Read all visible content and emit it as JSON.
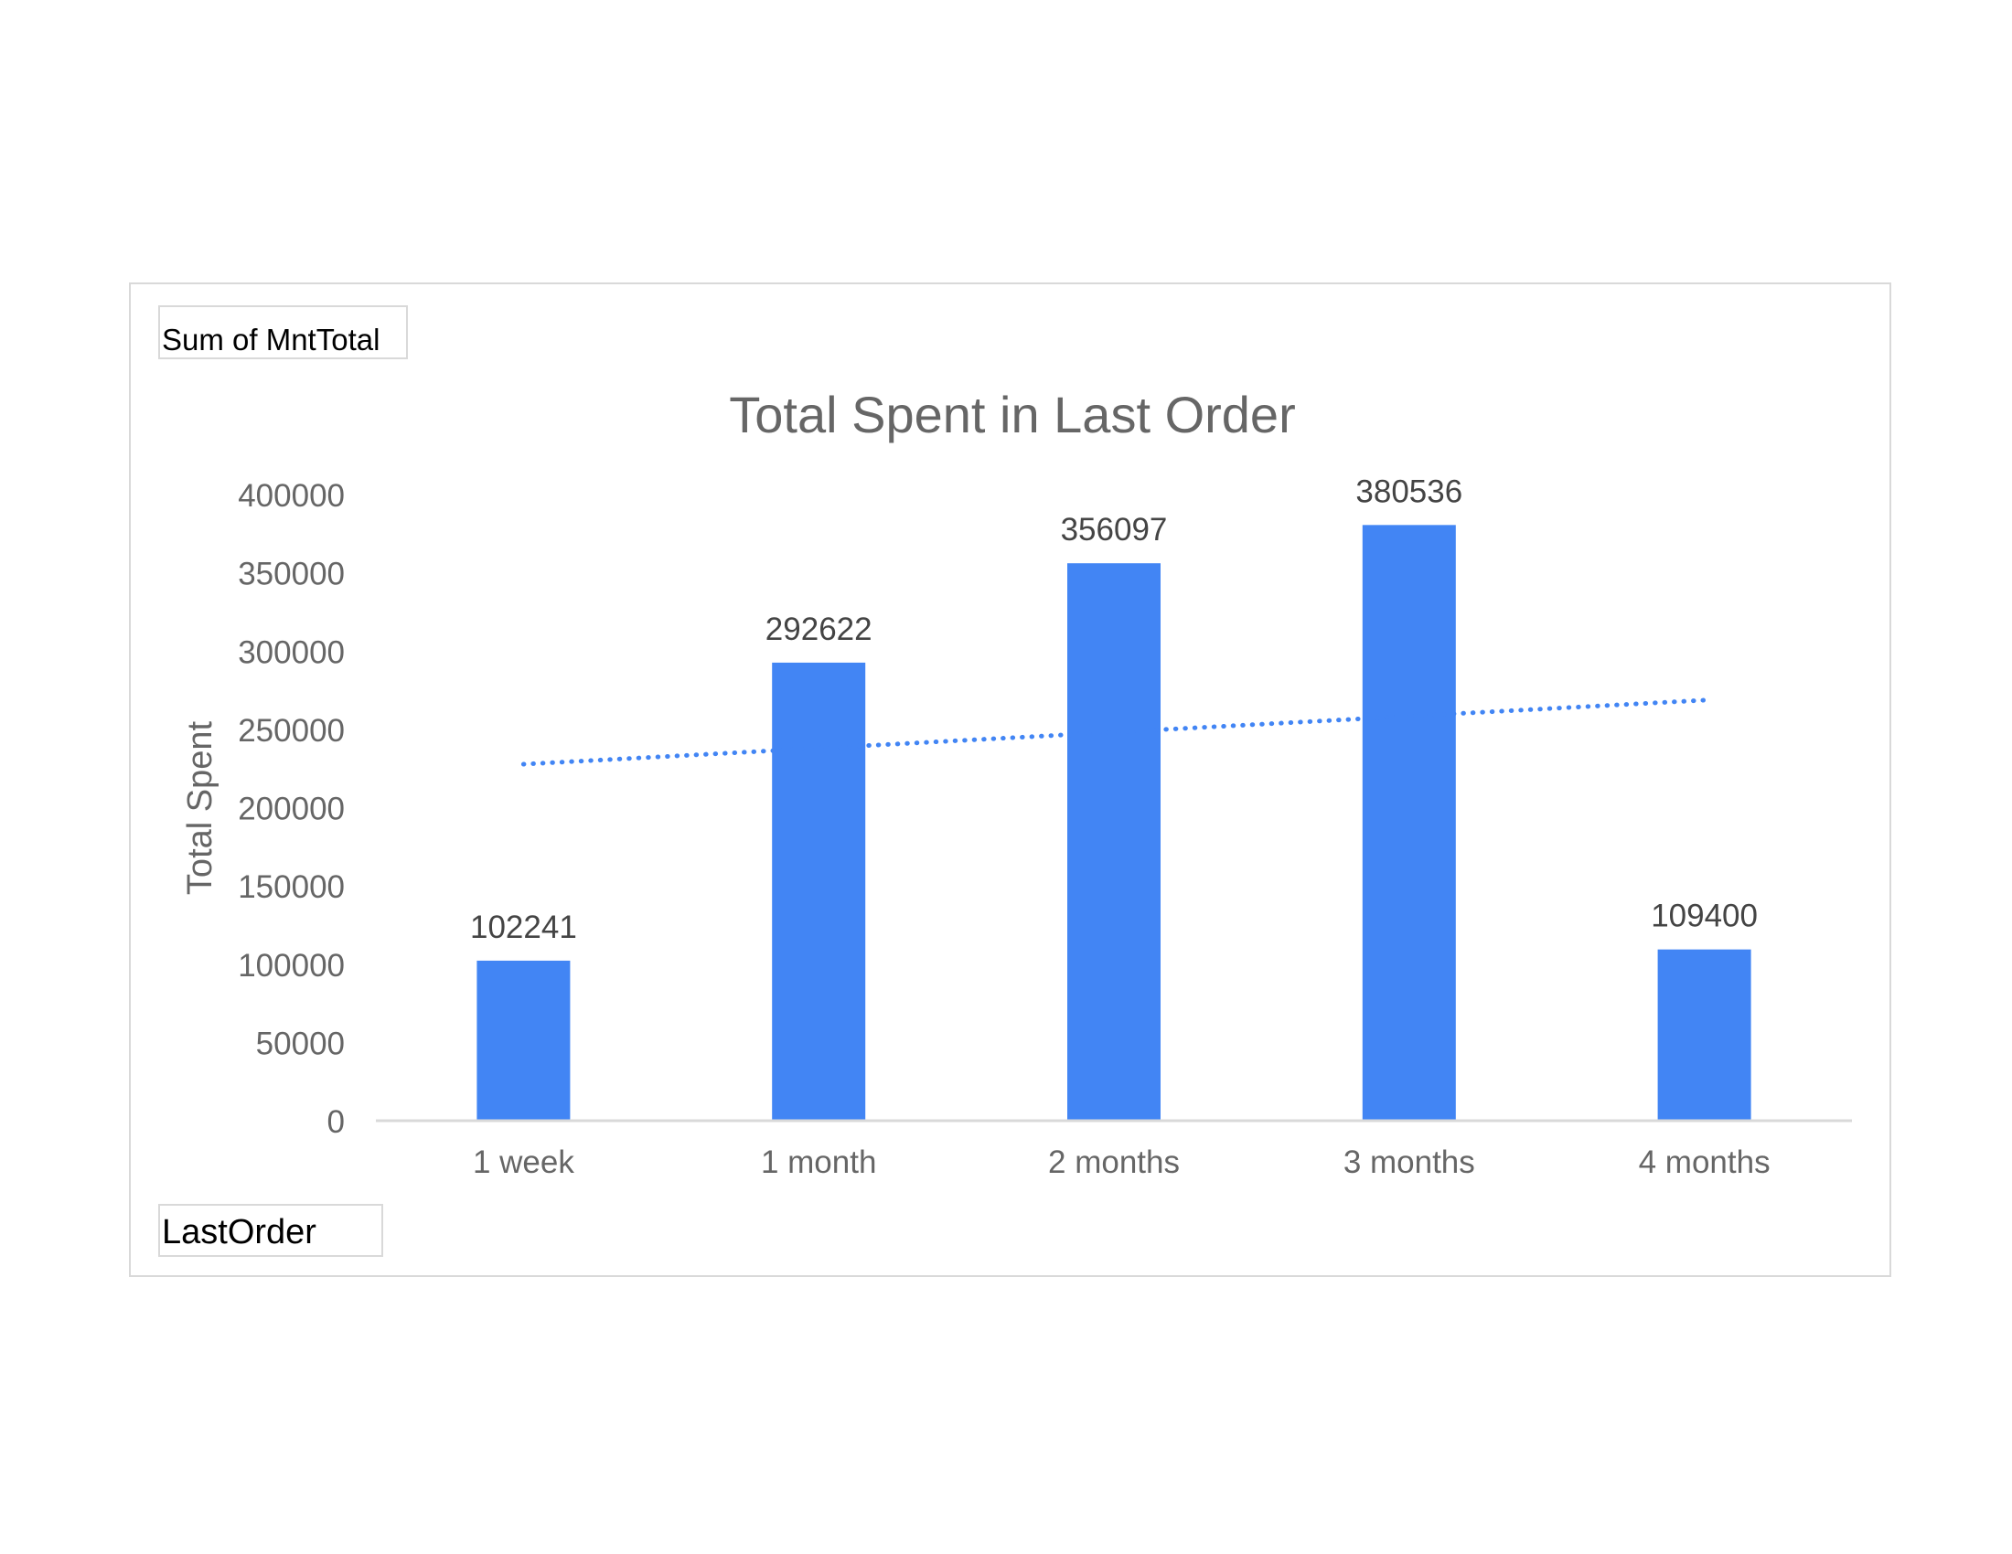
{
  "field_buttons": {
    "values_field": "Sum of MntTotal",
    "axis_field": "LastOrder"
  },
  "colors": {
    "bar": "#4285f4",
    "trendline": "#4285f4",
    "text": "#666666",
    "data_label": "#444444",
    "axis_line": "#d9d9d9"
  },
  "chart_data": {
    "type": "bar",
    "title": "Total Spent in Last Order",
    "xlabel": "",
    "ylabel": "Total Spent",
    "categories": [
      "1 week",
      "1 month",
      "2 months",
      "3 months",
      "4 months"
    ],
    "values": [
      102241,
      292622,
      356097,
      380536,
      109400
    ],
    "ylim": [
      0,
      400000
    ],
    "yticks": [
      0,
      50000,
      100000,
      150000,
      200000,
      250000,
      300000,
      350000,
      400000
    ],
    "data_labels": true,
    "gridlines": false,
    "legend": "none",
    "trendline": {
      "type": "linear",
      "style": "dotted"
    }
  }
}
